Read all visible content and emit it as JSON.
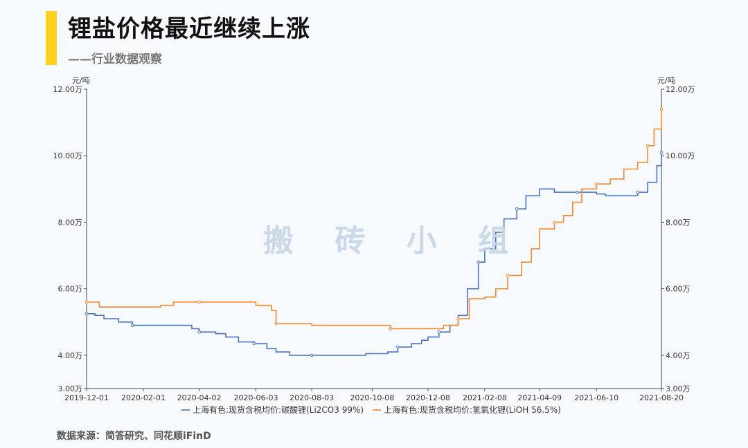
{
  "header": {
    "title": "锂盐价格最近继续上涨",
    "subtitle": "——行业数据观察"
  },
  "watermark": "搬 砖 小 组",
  "source": "数据来源：简答研究、同花顺iFinD",
  "colors": {
    "accent": "#ffd21f",
    "series1": "#4a72c4",
    "series2": "#f5892e"
  },
  "chart_data": {
    "type": "line",
    "yunit_left": "元/吨",
    "yunit_right": "元/吨",
    "ylim": [
      30000,
      120000
    ],
    "yticks": [
      {
        "v": 30000,
        "label": "3.00万"
      },
      {
        "v": 40000,
        "label": "4.00万"
      },
      {
        "v": 60000,
        "label": "6.00万"
      },
      {
        "v": 80000,
        "label": "8.00万"
      },
      {
        "v": 100000,
        "label": "10.00万"
      },
      {
        "v": 120000,
        "label": "12.00万"
      }
    ],
    "xlim": [
      "2019-12-01",
      "2021-08-20"
    ],
    "xticks": [
      "2019-12-01",
      "2020-02-01",
      "2020-04-02",
      "2020-06-03",
      "2020-08-03",
      "2020-10-08",
      "2020-12-08",
      "2021-02-08",
      "2021-04-09",
      "2021-06-10",
      "2021-08-20"
    ],
    "grid": false,
    "legend_position": "bottom",
    "series": [
      {
        "name": "上海有色:现货含税均价:碳酸锂(Li2CO3 99%)",
        "points": [
          [
            "2019-12-01",
            52500
          ],
          [
            "2019-12-10",
            52000
          ],
          [
            "2019-12-20",
            51000
          ],
          [
            "2020-01-05",
            50000
          ],
          [
            "2020-01-20",
            49000
          ],
          [
            "2020-02-20",
            49000
          ],
          [
            "2020-03-15",
            49000
          ],
          [
            "2020-03-25",
            48000
          ],
          [
            "2020-04-02",
            47000
          ],
          [
            "2020-04-20",
            46500
          ],
          [
            "2020-05-01",
            45500
          ],
          [
            "2020-05-15",
            44000
          ],
          [
            "2020-06-01",
            43500
          ],
          [
            "2020-06-15",
            42000
          ],
          [
            "2020-06-25",
            41000
          ],
          [
            "2020-07-10",
            40000
          ],
          [
            "2020-08-03",
            40000
          ],
          [
            "2020-09-01",
            40000
          ],
          [
            "2020-10-01",
            40500
          ],
          [
            "2020-10-25",
            41000
          ],
          [
            "2020-11-05",
            42500
          ],
          [
            "2020-11-20",
            43500
          ],
          [
            "2020-12-01",
            44500
          ],
          [
            "2020-12-08",
            45500
          ],
          [
            "2020-12-20",
            47000
          ],
          [
            "2021-01-01",
            49000
          ],
          [
            "2021-01-10",
            52000
          ],
          [
            "2021-01-20",
            60000
          ],
          [
            "2021-02-01",
            68000
          ],
          [
            "2021-02-08",
            72000
          ],
          [
            "2021-02-20",
            77000
          ],
          [
            "2021-03-01",
            81000
          ],
          [
            "2021-03-15",
            84000
          ],
          [
            "2021-03-25",
            88000
          ],
          [
            "2021-04-09",
            90000
          ],
          [
            "2021-04-25",
            89000
          ],
          [
            "2021-05-20",
            89000
          ],
          [
            "2021-06-10",
            88500
          ],
          [
            "2021-06-20",
            88000
          ],
          [
            "2021-07-15",
            88000
          ],
          [
            "2021-07-25",
            89000
          ],
          [
            "2021-08-05",
            92000
          ],
          [
            "2021-08-15",
            97000
          ],
          [
            "2021-08-20",
            101000
          ]
        ]
      },
      {
        "name": "上海有色:现货含税均价:氢氧化锂(LiOH 56.5%)",
        "points": [
          [
            "2019-12-01",
            56000
          ],
          [
            "2019-12-15",
            54500
          ],
          [
            "2020-02-20",
            55000
          ],
          [
            "2020-03-05",
            56000
          ],
          [
            "2020-04-02",
            56000
          ],
          [
            "2020-05-20",
            56000
          ],
          [
            "2020-06-03",
            55000
          ],
          [
            "2020-06-20",
            53500
          ],
          [
            "2020-06-25",
            49500
          ],
          [
            "2020-08-03",
            49000
          ],
          [
            "2020-09-15",
            49000
          ],
          [
            "2020-10-20",
            49000
          ],
          [
            "2020-10-28",
            48000
          ],
          [
            "2020-11-30",
            48000
          ],
          [
            "2020-12-08",
            48000
          ],
          [
            "2020-12-25",
            49000
          ],
          [
            "2021-01-10",
            51000
          ],
          [
            "2021-01-22",
            57000
          ],
          [
            "2021-02-08",
            57500
          ],
          [
            "2021-02-20",
            60000
          ],
          [
            "2021-03-05",
            64000
          ],
          [
            "2021-03-20",
            68000
          ],
          [
            "2021-03-31",
            72000
          ],
          [
            "2021-04-09",
            78000
          ],
          [
            "2021-04-25",
            80000
          ],
          [
            "2021-05-05",
            82000
          ],
          [
            "2021-05-15",
            86000
          ],
          [
            "2021-05-25",
            90000
          ],
          [
            "2021-06-10",
            91500
          ],
          [
            "2021-06-25",
            93000
          ],
          [
            "2021-07-10",
            96000
          ],
          [
            "2021-07-25",
            98000
          ],
          [
            "2021-08-05",
            103000
          ],
          [
            "2021-08-12",
            108000
          ],
          [
            "2021-08-20",
            114000
          ]
        ]
      }
    ]
  }
}
